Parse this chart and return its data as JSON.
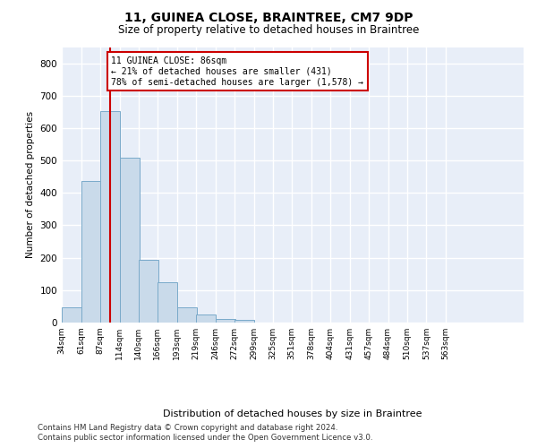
{
  "title": "11, GUINEA CLOSE, BRAINTREE, CM7 9DP",
  "subtitle": "Size of property relative to detached houses in Braintree",
  "xlabel": "Distribution of detached houses by size in Braintree",
  "ylabel": "Number of detached properties",
  "bar_color": "#c9daea",
  "bar_edge_color": "#7aaaca",
  "background_color": "#e8eef8",
  "grid_color": "#ffffff",
  "categories": [
    "34sqm",
    "61sqm",
    "87sqm",
    "114sqm",
    "140sqm",
    "166sqm",
    "193sqm",
    "219sqm",
    "246sqm",
    "272sqm",
    "299sqm",
    "325sqm",
    "351sqm",
    "378sqm",
    "404sqm",
    "431sqm",
    "457sqm",
    "484sqm",
    "510sqm",
    "537sqm",
    "563sqm"
  ],
  "values": [
    46,
    437,
    653,
    509,
    193,
    125,
    48,
    25,
    10,
    8,
    0,
    0,
    0,
    0,
    0,
    0,
    0,
    0,
    0,
    0,
    0
  ],
  "property_line_x": 87,
  "annotation_text": "11 GUINEA CLOSE: 86sqm\n← 21% of detached houses are smaller (431)\n78% of semi-detached houses are larger (1,578) →",
  "annotation_box_color": "#ffffff",
  "annotation_box_edge": "#cc0000",
  "annotation_line_color": "#cc0000",
  "ylim": [
    0,
    850
  ],
  "yticks": [
    0,
    100,
    200,
    300,
    400,
    500,
    600,
    700,
    800
  ],
  "footer1": "Contains HM Land Registry data © Crown copyright and database right 2024.",
  "footer2": "Contains public sector information licensed under the Open Government Licence v3.0.",
  "bin_width": 27
}
